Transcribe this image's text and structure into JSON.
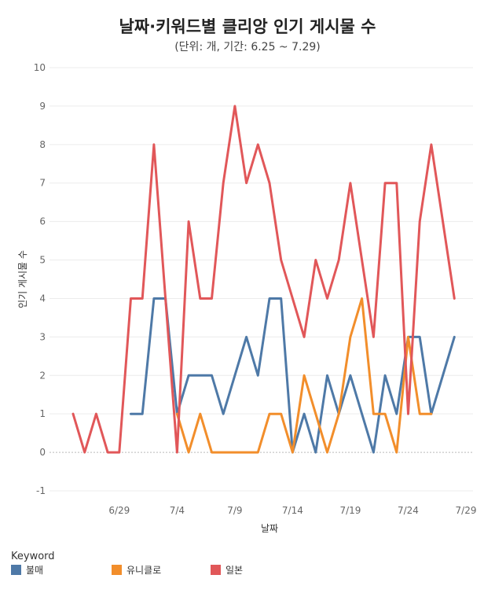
{
  "chart_data": {
    "type": "line",
    "title": "날짜·키워드별 클리앙 인기 게시물 수",
    "subtitle": "(단위: 개, 기간: 6.25 ~ 7.29)",
    "xlabel": "날짜",
    "ylabel": "인기 게시물 수",
    "x": [
      "6/25",
      "6/26",
      "6/27",
      "6/28",
      "6/29",
      "6/30",
      "7/1",
      "7/2",
      "7/3",
      "7/4",
      "7/5",
      "7/6",
      "7/7",
      "7/8",
      "7/9",
      "7/10",
      "7/11",
      "7/12",
      "7/13",
      "7/14",
      "7/15",
      "7/16",
      "7/17",
      "7/18",
      "7/19",
      "7/20",
      "7/21",
      "7/22",
      "7/23",
      "7/24",
      "7/25",
      "7/26",
      "7/27",
      "7/28",
      "7/29"
    ],
    "x_ticks": [
      "6/29",
      "7/4",
      "7/9",
      "7/14",
      "7/19",
      "7/24",
      "7/29"
    ],
    "ylim": [
      -1,
      10
    ],
    "y_ticks": [
      "-1",
      "0",
      "1",
      "2",
      "3",
      "4",
      "5",
      "6",
      "7",
      "8",
      "9",
      "10"
    ],
    "grid": true,
    "legend_title": "Keyword",
    "legend_position": "bottom",
    "series": [
      {
        "name": "불매",
        "color": "#4e79a7",
        "values": [
          null,
          null,
          null,
          null,
          null,
          1,
          1,
          4,
          4,
          1,
          2,
          2,
          2,
          1,
          2,
          3,
          2,
          4,
          4,
          0,
          1,
          0,
          2,
          1,
          2,
          1,
          0,
          2,
          1,
          3,
          3,
          1,
          2,
          3,
          null
        ]
      },
      {
        "name": "유니클로",
        "color": "#f28e2b",
        "values": [
          null,
          null,
          null,
          null,
          null,
          null,
          null,
          null,
          null,
          1,
          0,
          1,
          0,
          0,
          0,
          0,
          0,
          1,
          1,
          0,
          2,
          1,
          0,
          1,
          3,
          4,
          1,
          1,
          0,
          3,
          1,
          1,
          null,
          null,
          null
        ]
      },
      {
        "name": "일본",
        "color": "#e15759",
        "values": [
          1,
          0,
          1,
          0,
          0,
          4,
          4,
          8,
          4,
          0,
          6,
          4,
          4,
          7,
          9,
          7,
          8,
          7,
          5,
          4,
          3,
          5,
          4,
          5,
          7,
          5,
          3,
          7,
          7,
          1,
          6,
          8,
          6,
          4,
          null
        ]
      }
    ]
  }
}
